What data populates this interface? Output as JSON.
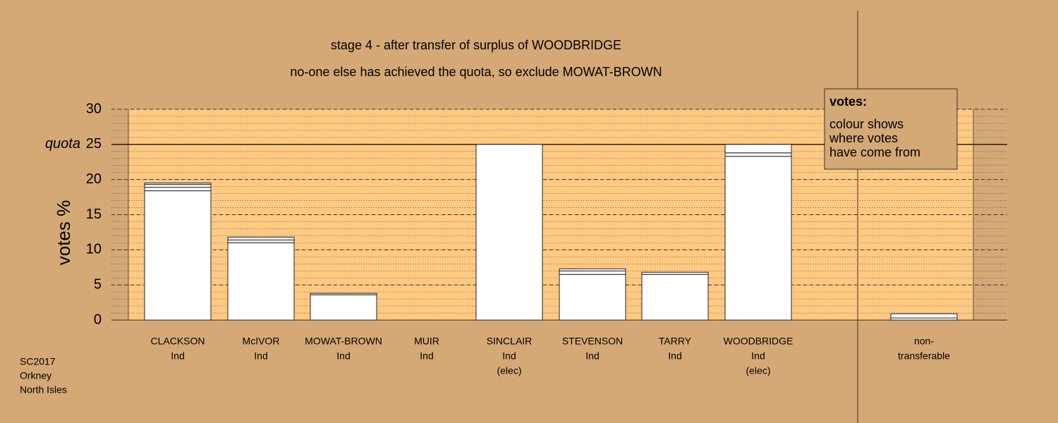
{
  "chart_data": {
    "type": "bar",
    "title": "stage 4 - after transfer of surplus of WOODBRIDGE",
    "subtitle": "no-one else has achieved the quota, so exclude MOWAT-BROWN",
    "y_label": "votes %",
    "categories": [
      [
        "CLACKSON",
        "Ind"
      ],
      [
        "McIVOR",
        "Ind"
      ],
      [
        "MOWAT-BROWN",
        "Ind"
      ],
      [
        "MUIR",
        "Ind"
      ],
      [
        "SINCLAIR",
        "Ind",
        "(elec)"
      ],
      [
        "STEVENSON",
        "Ind"
      ],
      [
        "TARRY",
        "Ind"
      ],
      [
        "WOODBRIDGE",
        "Ind",
        "(elec)"
      ],
      [
        "non-",
        "transferable"
      ]
    ],
    "series": [
      {
        "color": "#ffffff",
        "values": [
          18.4,
          11.0,
          3.6,
          0,
          25,
          6.5,
          6.5,
          23.3,
          0.3
        ]
      },
      {
        "color": "#ffffff",
        "values": [
          0.5,
          0.4,
          0.2,
          0,
          0,
          0.5,
          0.3,
          0.5,
          0.6
        ]
      },
      {
        "color": "#ffffff",
        "values": [
          0.4,
          0.4,
          0,
          0,
          0,
          0.3,
          0,
          1.2,
          0
        ]
      },
      {
        "color": "#ffffff",
        "values": [
          0.2,
          0,
          0,
          0,
          0,
          0,
          0,
          0,
          0
        ]
      }
    ],
    "ylim": [
      0,
      30
    ],
    "yticks": [
      0,
      5,
      10,
      15,
      20,
      25,
      30
    ],
    "grid": true,
    "quota": {
      "label": "quota",
      "value": 25
    },
    "legend": {
      "title": "votes:",
      "lines": [
        "colour shows",
        "where votes",
        "have come from"
      ]
    },
    "note": [
      "SC2017",
      "Orkney",
      "North Isles"
    ]
  }
}
